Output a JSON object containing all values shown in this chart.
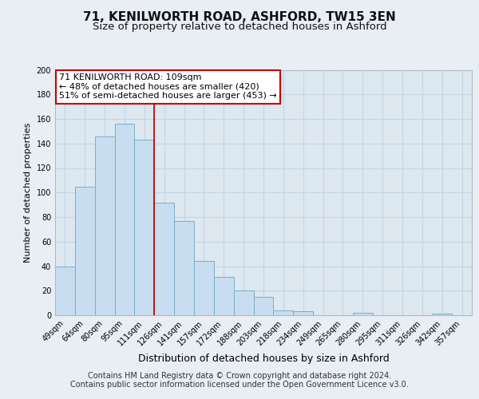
{
  "title": "71, KENILWORTH ROAD, ASHFORD, TW15 3EN",
  "subtitle": "Size of property relative to detached houses in Ashford",
  "xlabel": "Distribution of detached houses by size in Ashford",
  "ylabel": "Number of detached properties",
  "categories": [
    "49sqm",
    "64sqm",
    "80sqm",
    "95sqm",
    "111sqm",
    "126sqm",
    "141sqm",
    "157sqm",
    "172sqm",
    "188sqm",
    "203sqm",
    "218sqm",
    "234sqm",
    "249sqm",
    "265sqm",
    "280sqm",
    "295sqm",
    "311sqm",
    "326sqm",
    "342sqm",
    "357sqm"
  ],
  "values": [
    40,
    105,
    146,
    156,
    143,
    92,
    77,
    44,
    31,
    20,
    15,
    4,
    3,
    0,
    0,
    2,
    0,
    0,
    0,
    1,
    0
  ],
  "bar_color": "#c8ddef",
  "bar_edge_color": "#7aaec8",
  "vline_index": 4,
  "vline_color": "#cc0000",
  "annotation_title": "71 KENILWORTH ROAD: 109sqm",
  "annotation_line1": "← 48% of detached houses are smaller (420)",
  "annotation_line2": "51% of semi-detached houses are larger (453) →",
  "annotation_box_color": "#ffffff",
  "annotation_box_edge": "#cc0000",
  "ylim": [
    0,
    200
  ],
  "yticks": [
    0,
    20,
    40,
    60,
    80,
    100,
    120,
    140,
    160,
    180,
    200
  ],
  "footer1": "Contains HM Land Registry data © Crown copyright and database right 2024.",
  "footer2": "Contains public sector information licensed under the Open Government Licence v3.0.",
  "bg_color": "#e8eef4",
  "plot_bg_color": "#dde8f0",
  "grid_color": "#c5d5e5",
  "title_fontsize": 11,
  "subtitle_fontsize": 9.5,
  "xlabel_fontsize": 9,
  "ylabel_fontsize": 8,
  "tick_fontsize": 7,
  "annotation_fontsize": 8,
  "footer_fontsize": 7
}
